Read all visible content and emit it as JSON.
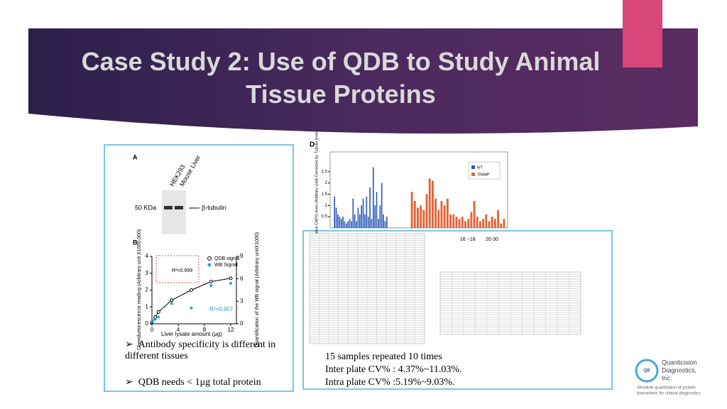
{
  "title": "Case Study 2: Use of QDB to Study Animal Tissue Proteins",
  "panel_a": {
    "label": "A",
    "lanes": [
      "HEK293",
      "Mouse Liver"
    ],
    "marker": "50 KDa",
    "band": "β-tubulin"
  },
  "panel_b": {
    "label": "B",
    "y_label": "Chemiluminescence reading (Arbitrary unit X1000,000)",
    "y2_label": "Quantification of the WB signal (Arbitrary unitX1000)",
    "x_label": "Liver lysate amount (μg)",
    "legend": [
      "QDB signal",
      "WB Signal"
    ],
    "r2_qdb": "R²=0.999",
    "r2_wb": "R²=0.907",
    "xlim": [
      0,
      12
    ],
    "xticks": [
      0,
      4,
      8,
      12
    ],
    "ylim": [
      0,
      4
    ],
    "yticks": [
      0,
      1,
      2,
      3,
      4
    ],
    "y2lim": [
      0,
      9
    ],
    "y2ticks": [
      0,
      3,
      6,
      9
    ],
    "x": [
      0,
      0.5,
      1,
      3,
      6,
      9,
      12
    ],
    "qdb": [
      0.1,
      0.4,
      0.7,
      1.4,
      2.0,
      2.5,
      2.7
    ],
    "wb": [
      0.3,
      0.6,
      0.9,
      2.7,
      2.1,
      5.1,
      5.4
    ]
  },
  "panel_d": {
    "label": "D",
    "y_label": "Relative CAPG level (Arbitrary Unit) Corrected by Tubulin level",
    "ylim": [
      0,
      3
    ],
    "yticks": [
      0.5,
      1,
      1.5,
      2,
      2.5
    ],
    "series": [
      {
        "name": "WT",
        "color": "#2e5db8",
        "values": [
          1.4,
          0.9,
          0.6,
          0.5,
          0.4,
          0.5,
          0.3,
          0.2,
          0.3,
          0.4,
          0.3,
          1.3,
          0.6,
          0.3,
          0.9,
          0.6,
          1.0,
          1.3,
          0.6,
          1.4,
          0.5,
          1.8,
          0.4,
          2.7,
          1.0,
          1.6,
          0.4,
          1.0,
          2.0,
          0.6,
          0.3,
          0.5
        ]
      },
      {
        "name": "TRAMP",
        "color": "#e0653a",
        "values": [
          1.6,
          1.2,
          0.9,
          1.0,
          0.8,
          1.5,
          2.2,
          2.1,
          1.3,
          0.8,
          1.2,
          1.0,
          1.3,
          0.6,
          0.6,
          0.5,
          0.4,
          0.5,
          0.3,
          0.4,
          0.7,
          1.2,
          0.5,
          0.3,
          0.4,
          0.6,
          0.3,
          0.5,
          0.4,
          0.8,
          0.2,
          0.4
        ]
      }
    ],
    "ages": [
      "16 ~18",
      "20-30"
    ]
  },
  "bullets_left": [
    "Antibody specificity is different in different tissues",
    "QDB needs < 1μg total protein"
  ],
  "notes_right": [
    "15 samples repeated 10 times",
    "Inter plate CV% : 4.37%~11.03%.",
    "Intra plate CV% :5.19%~9.03%."
  ],
  "logo": {
    "mark": "QB",
    "name": [
      "Quanticision",
      "Diagnostics,",
      "Inc."
    ],
    "tagline": [
      "Absolute quantitation of protein",
      "biomarkers for clinical diagnostics"
    ]
  }
}
